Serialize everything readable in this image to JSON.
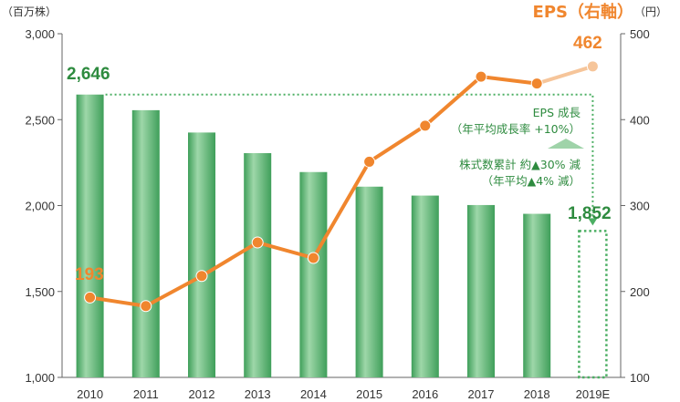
{
  "chart_data": {
    "type": "bar+line",
    "categories": [
      "2010",
      "2011",
      "2012",
      "2013",
      "2014",
      "2015",
      "2016",
      "2017",
      "2018",
      "2019E"
    ],
    "left_axis": {
      "unit": "（百万株）",
      "ticks": [
        "1,000",
        "1,500",
        "2,000",
        "2,500",
        "3,000"
      ],
      "ylim": [
        1000,
        3000
      ]
    },
    "right_axis": {
      "unit": "（円）",
      "title": "EPS（右軸）",
      "ticks": [
        "100",
        "200",
        "300",
        "400",
        "500"
      ],
      "ylim": [
        100,
        500
      ]
    },
    "series": [
      {
        "type": "bar",
        "axis": "left",
        "values": [
          2646,
          2555,
          2425,
          2305,
          2195,
          2110,
          2058,
          2003,
          1952,
          1852
        ],
        "projected_index": 9,
        "color": "#5cb574",
        "labels": {
          "first": "2,646",
          "last": "1,852"
        }
      },
      {
        "type": "line",
        "axis": "right",
        "values": [
          193,
          183,
          218,
          257,
          239,
          351,
          393,
          450,
          442,
          462
        ],
        "projected_index": 9,
        "color": "#f0862e",
        "projected_color": "#f6c59a",
        "labels": {
          "first": "193",
          "last": "462"
        }
      }
    ],
    "annotations": {
      "eps_growth": [
        "EPS 成長",
        "（年平均成長率 +10%）"
      ],
      "share_reduction": [
        "株式数累計 約▲30% 減",
        "（年平均▲4% 減）"
      ]
    }
  }
}
